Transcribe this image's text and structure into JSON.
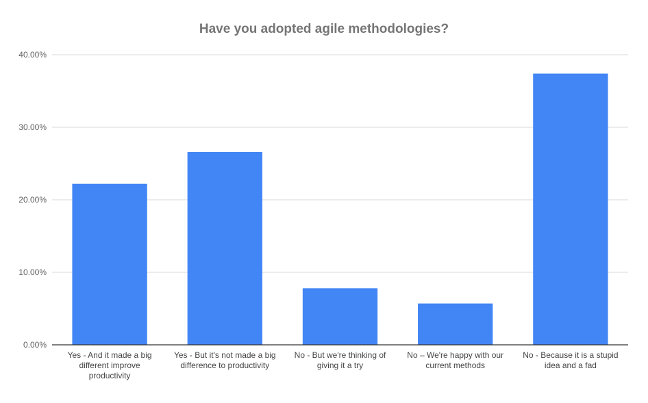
{
  "chart_data": {
    "type": "bar",
    "title": "Have you adopted agile methodologies?",
    "xlabel": "",
    "ylabel": "",
    "categories": [
      [
        "Yes - And it made a big",
        "different improve",
        "productivity"
      ],
      [
        "Yes - But it's not made a big",
        "difference to productivity"
      ],
      [
        "No - But we're thinking of",
        "giving it a try"
      ],
      [
        "No – We're happy with our",
        "current methods"
      ],
      [
        "No - Because it is a stupid",
        "idea and a fad"
      ]
    ],
    "values": [
      22.2,
      26.6,
      7.8,
      5.7,
      37.4
    ],
    "ylim": [
      0,
      40
    ],
    "yticks": [
      "0.00%",
      "10.00%",
      "20.00%",
      "30.00%",
      "40.00%"
    ],
    "grid": true,
    "legend": "none",
    "colors": {
      "bar": "#4285f4",
      "grid": "#d9d9d9",
      "axis": "#333333"
    }
  }
}
